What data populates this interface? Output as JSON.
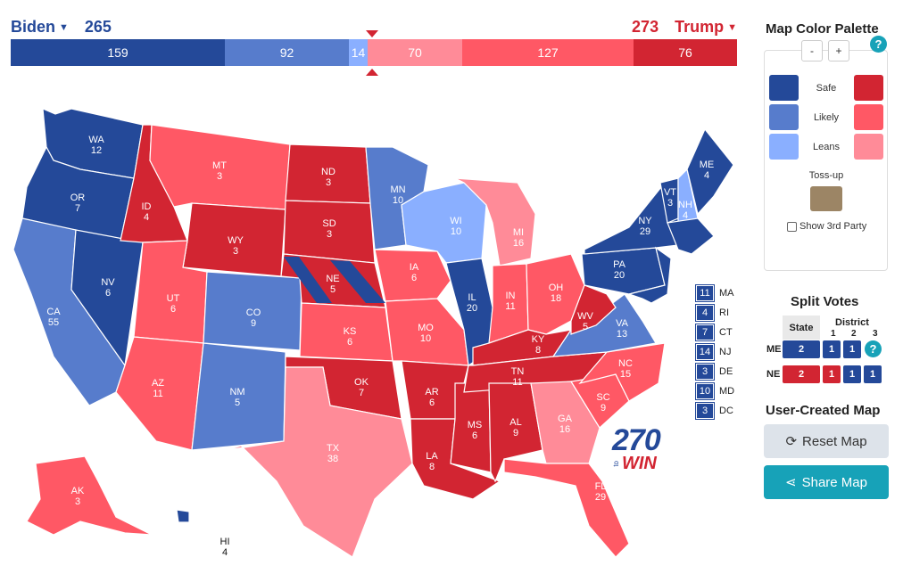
{
  "header": {
    "biden_label": "Biden",
    "biden_total": "265",
    "trump_label": "Trump",
    "trump_total": "273"
  },
  "bar": {
    "biden_safe": "159",
    "biden_likely": "92",
    "biden_leans": "14",
    "trump_leans": "70",
    "trump_likely": "127",
    "trump_safe": "76"
  },
  "colors": {
    "dem_safe": "#244999",
    "dem_likely": "#577ccc",
    "dem_leans": "#8aafff",
    "rep_safe": "#d22532",
    "rep_likely": "#ff5865",
    "rep_leans": "#ff8b98",
    "tossup": "#9c8565"
  },
  "states": [
    {
      "abbr": "WA",
      "ev": "12"
    },
    {
      "abbr": "OR",
      "ev": "7"
    },
    {
      "abbr": "CA",
      "ev": "55"
    },
    {
      "abbr": "NV",
      "ev": "6"
    },
    {
      "abbr": "ID",
      "ev": "4"
    },
    {
      "abbr": "MT",
      "ev": "3"
    },
    {
      "abbr": "WY",
      "ev": "3"
    },
    {
      "abbr": "UT",
      "ev": "6"
    },
    {
      "abbr": "AZ",
      "ev": "11"
    },
    {
      "abbr": "CO",
      "ev": "9"
    },
    {
      "abbr": "NM",
      "ev": "5"
    },
    {
      "abbr": "ND",
      "ev": "3"
    },
    {
      "abbr": "SD",
      "ev": "3"
    },
    {
      "abbr": "NE",
      "ev": "5"
    },
    {
      "abbr": "KS",
      "ev": "6"
    },
    {
      "abbr": "OK",
      "ev": "7"
    },
    {
      "abbr": "TX",
      "ev": "38"
    },
    {
      "abbr": "MN",
      "ev": "10"
    },
    {
      "abbr": "IA",
      "ev": "6"
    },
    {
      "abbr": "MO",
      "ev": "10"
    },
    {
      "abbr": "AR",
      "ev": "6"
    },
    {
      "abbr": "LA",
      "ev": "8"
    },
    {
      "abbr": "WI",
      "ev": "10"
    },
    {
      "abbr": "IL",
      "ev": "20"
    },
    {
      "abbr": "MS",
      "ev": "6"
    },
    {
      "abbr": "MI",
      "ev": "16"
    },
    {
      "abbr": "IN",
      "ev": "11"
    },
    {
      "abbr": "KY",
      "ev": "8"
    },
    {
      "abbr": "TN",
      "ev": "11"
    },
    {
      "abbr": "AL",
      "ev": "9"
    },
    {
      "abbr": "OH",
      "ev": "18"
    },
    {
      "abbr": "WV",
      "ev": "5"
    },
    {
      "abbr": "VA",
      "ev": "13"
    },
    {
      "abbr": "NC",
      "ev": "15"
    },
    {
      "abbr": "SC",
      "ev": "9"
    },
    {
      "abbr": "GA",
      "ev": "16"
    },
    {
      "abbr": "FL",
      "ev": "29"
    },
    {
      "abbr": "PA",
      "ev": "20"
    },
    {
      "abbr": "NY",
      "ev": "29"
    },
    {
      "abbr": "VT",
      "ev": "3"
    },
    {
      "abbr": "NH",
      "ev": "4"
    },
    {
      "abbr": "ME",
      "ev": "4"
    },
    {
      "abbr": "AK",
      "ev": "3"
    },
    {
      "abbr": "HI",
      "ev": "4"
    }
  ],
  "small_states": [
    {
      "ev": "11",
      "abbr": "MA"
    },
    {
      "ev": "4",
      "abbr": "RI"
    },
    {
      "ev": "7",
      "abbr": "CT"
    },
    {
      "ev": "14",
      "abbr": "NJ"
    },
    {
      "ev": "3",
      "abbr": "DE"
    },
    {
      "ev": "10",
      "abbr": "MD"
    },
    {
      "ev": "3",
      "abbr": "DC"
    }
  ],
  "logo": {
    "num": "270",
    "to": "to",
    "win": "WIN"
  },
  "palette": {
    "title": "Map Color Palette",
    "zoom_out": "-",
    "zoom_in": "+",
    "help": "?",
    "safe": "Safe",
    "likely": "Likely",
    "leans": "Leans",
    "tossup": "Toss-up",
    "show3": "Show 3rd Party"
  },
  "split": {
    "title": "Split Votes",
    "state_header": "State",
    "district_header": "District",
    "d1": "1",
    "d2": "2",
    "d3": "3",
    "help": "?",
    "me": {
      "label": "ME",
      "state": "2",
      "d1": "1",
      "d2": "1"
    },
    "ne": {
      "label": "NE",
      "state": "2",
      "d1": "1",
      "d2": "1",
      "d3": "1"
    }
  },
  "ucm": {
    "title": "User-Created Map",
    "reset": "Reset Map",
    "share": "Share Map"
  }
}
